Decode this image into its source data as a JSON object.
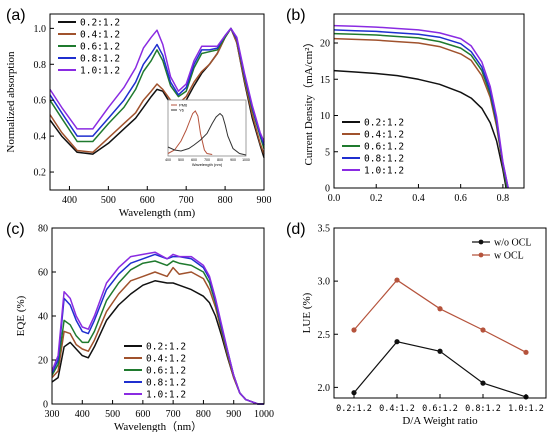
{
  "colors": {
    "r0.2": "#111111",
    "r0.4": "#a0522d",
    "r0.6": "#1f7a2e",
    "r0.8": "#1f2fcf",
    "r1.0": "#8a2be2",
    "wo": "#111111",
    "w": "#b5533c",
    "pm6": "#b5533c",
    "y6": "#333333"
  },
  "chart_data": [
    {
      "panel": "(a)",
      "type": "line",
      "xlabel": "Wavelength (nm)",
      "ylabel": "Normalized absorption",
      "xlim": [
        350,
        900
      ],
      "ylim": [
        0.1,
        1.08
      ],
      "xticks": [
        400,
        500,
        600,
        700,
        800,
        900
      ],
      "yticks": [
        0.2,
        0.4,
        0.6,
        0.8,
        1.0
      ],
      "legend_position": "top-left",
      "series": [
        {
          "name": "0.2:1.2",
          "color_key": "r0.2",
          "x": [
            350,
            380,
            420,
            460,
            500,
            540,
            570,
            590,
            610,
            625,
            640,
            660,
            680,
            700,
            720,
            740,
            760,
            780,
            800,
            815,
            830,
            850,
            870,
            890,
            900
          ],
          "y": [
            0.49,
            0.4,
            0.31,
            0.3,
            0.36,
            0.44,
            0.5,
            0.56,
            0.62,
            0.66,
            0.65,
            0.58,
            0.56,
            0.6,
            0.68,
            0.75,
            0.8,
            0.86,
            0.95,
            1.0,
            0.92,
            0.7,
            0.5,
            0.35,
            0.28
          ]
        },
        {
          "name": "0.4:1.2",
          "color_key": "r0.4",
          "x": [
            350,
            380,
            420,
            460,
            500,
            540,
            570,
            590,
            610,
            625,
            640,
            660,
            680,
            700,
            720,
            740,
            760,
            780,
            800,
            815,
            830,
            850,
            870,
            890,
            900
          ],
          "y": [
            0.52,
            0.42,
            0.32,
            0.31,
            0.39,
            0.47,
            0.53,
            0.6,
            0.65,
            0.69,
            0.66,
            0.6,
            0.58,
            0.62,
            0.7,
            0.76,
            0.8,
            0.86,
            0.95,
            1.0,
            0.92,
            0.71,
            0.52,
            0.36,
            0.3
          ]
        },
        {
          "name": "0.6:1.2",
          "color_key": "r0.6",
          "x": [
            350,
            380,
            420,
            460,
            500,
            540,
            570,
            590,
            610,
            625,
            640,
            660,
            680,
            700,
            720,
            740,
            760,
            780,
            800,
            815,
            830,
            850,
            870,
            890,
            900
          ],
          "y": [
            0.6,
            0.5,
            0.37,
            0.37,
            0.47,
            0.56,
            0.66,
            0.76,
            0.82,
            0.88,
            0.82,
            0.68,
            0.62,
            0.65,
            0.78,
            0.86,
            0.87,
            0.88,
            0.95,
            1.0,
            0.94,
            0.73,
            0.55,
            0.4,
            0.33
          ]
        },
        {
          "name": "0.8:1.2",
          "color_key": "r0.8",
          "x": [
            350,
            380,
            420,
            460,
            500,
            540,
            570,
            590,
            610,
            625,
            640,
            660,
            680,
            700,
            720,
            740,
            760,
            780,
            800,
            815,
            830,
            850,
            870,
            890,
            900
          ],
          "y": [
            0.63,
            0.53,
            0.4,
            0.4,
            0.5,
            0.6,
            0.7,
            0.8,
            0.86,
            0.91,
            0.85,
            0.7,
            0.63,
            0.67,
            0.8,
            0.88,
            0.88,
            0.89,
            0.96,
            1.0,
            0.94,
            0.74,
            0.56,
            0.41,
            0.35
          ]
        },
        {
          "name": "1.0:1.2",
          "color_key": "r1.0",
          "x": [
            350,
            380,
            420,
            460,
            500,
            540,
            570,
            590,
            610,
            625,
            640,
            660,
            680,
            700,
            720,
            740,
            760,
            780,
            800,
            815,
            830,
            850,
            870,
            890,
            900
          ],
          "y": [
            0.66,
            0.56,
            0.44,
            0.44,
            0.56,
            0.67,
            0.78,
            0.89,
            0.95,
            0.99,
            0.91,
            0.73,
            0.65,
            0.69,
            0.82,
            0.9,
            0.9,
            0.9,
            0.96,
            1.0,
            0.95,
            0.75,
            0.57,
            0.42,
            0.37
          ]
        }
      ],
      "inset": {
        "type": "line",
        "xlabel": "Wavelength (nm)",
        "legend": [
          "PM6",
          "Y6"
        ],
        "xlim": [
          400,
          1000
        ],
        "xticks": [
          400,
          500,
          600,
          700,
          800,
          900,
          1000
        ],
        "series": [
          {
            "name": "PM6",
            "color_key": "pm6",
            "x": [
              400,
              450,
              500,
              540,
              570,
              590,
              610,
              630,
              650,
              680,
              700,
              740
            ],
            "y": [
              0.05,
              0.12,
              0.3,
              0.52,
              0.72,
              0.85,
              0.9,
              0.8,
              0.45,
              0.12,
              0.05,
              0.03
            ]
          },
          {
            "name": "Y6",
            "color_key": "y6",
            "x": [
              400,
              450,
              500,
              560,
              600,
              650,
              700,
              740,
              770,
              800,
              820,
              840,
              860,
              900,
              950,
              1000
            ],
            "y": [
              0.18,
              0.12,
              0.1,
              0.15,
              0.22,
              0.32,
              0.45,
              0.65,
              0.78,
              0.85,
              0.8,
              0.62,
              0.4,
              0.15,
              0.05,
              0.02
            ]
          }
        ]
      }
    },
    {
      "panel": "(b)",
      "type": "line",
      "xlabel": "",
      "ylabel": "Current Density（mA/cm²）",
      "xlim": [
        0,
        0.9
      ],
      "ylim": [
        0,
        24
      ],
      "xticks": [
        0.0,
        0.2,
        0.4,
        0.6,
        0.8
      ],
      "yticks": [
        0,
        5,
        10,
        15,
        20
      ],
      "legend_position": "bottom-left",
      "series": [
        {
          "name": "0.2:1.2",
          "color_key": "r0.2",
          "x": [
            0,
            0.1,
            0.2,
            0.3,
            0.4,
            0.5,
            0.6,
            0.65,
            0.7,
            0.74,
            0.77,
            0.8,
            0.815
          ],
          "y": [
            16.2,
            16.0,
            15.8,
            15.5,
            15.0,
            14.3,
            13.2,
            12.4,
            11.0,
            9.0,
            6.5,
            2.5,
            0
          ]
        },
        {
          "name": "0.4:1.2",
          "color_key": "r0.4",
          "x": [
            0,
            0.1,
            0.2,
            0.3,
            0.4,
            0.5,
            0.6,
            0.65,
            0.7,
            0.74,
            0.77,
            0.8,
            0.82
          ],
          "y": [
            20.6,
            20.5,
            20.4,
            20.2,
            20.0,
            19.5,
            18.5,
            17.6,
            15.5,
            12.5,
            8.5,
            3.0,
            0
          ]
        },
        {
          "name": "0.6:1.2",
          "color_key": "r0.6",
          "x": [
            0,
            0.1,
            0.2,
            0.3,
            0.4,
            0.5,
            0.6,
            0.65,
            0.7,
            0.74,
            0.77,
            0.8,
            0.82
          ],
          "y": [
            21.3,
            21.2,
            21.1,
            20.9,
            20.7,
            20.2,
            19.3,
            18.3,
            16.2,
            13.0,
            9.0,
            3.2,
            0
          ]
        },
        {
          "name": "0.8:1.2",
          "color_key": "r0.8",
          "x": [
            0,
            0.1,
            0.2,
            0.3,
            0.4,
            0.5,
            0.6,
            0.65,
            0.7,
            0.74,
            0.77,
            0.8,
            0.825
          ],
          "y": [
            21.8,
            21.7,
            21.6,
            21.4,
            21.2,
            20.8,
            19.9,
            18.8,
            16.7,
            13.4,
            9.3,
            3.4,
            0
          ]
        },
        {
          "name": "1.0:1.2",
          "color_key": "r1.0",
          "x": [
            0,
            0.1,
            0.2,
            0.3,
            0.4,
            0.5,
            0.6,
            0.65,
            0.7,
            0.74,
            0.77,
            0.8,
            0.825
          ],
          "y": [
            22.4,
            22.3,
            22.2,
            22.0,
            21.8,
            21.4,
            20.6,
            19.6,
            17.4,
            14.0,
            9.8,
            3.6,
            0
          ]
        }
      ]
    },
    {
      "panel": "(c)",
      "type": "line",
      "xlabel": "Wavelength（nm）",
      "ylabel": "EQE  (%)",
      "xlim": [
        300,
        1000
      ],
      "ylim": [
        0,
        80
      ],
      "xticks": [
        300,
        400,
        500,
        600,
        700,
        800,
        900,
        1000
      ],
      "yticks": [
        0,
        20,
        40,
        60,
        80
      ],
      "legend_position": "bottom-left",
      "series": [
        {
          "name": "0.2:1.2",
          "color_key": "r0.2",
          "x": [
            300,
            320,
            340,
            360,
            380,
            400,
            420,
            440,
            480,
            520,
            560,
            600,
            640,
            680,
            700,
            720,
            760,
            800,
            820,
            840,
            860,
            880,
            900,
            920,
            940,
            960,
            980,
            1000
          ],
          "y": [
            10,
            12,
            26,
            28,
            25,
            22,
            21,
            26,
            38,
            45,
            50,
            54,
            56,
            55,
            55,
            54,
            52,
            49,
            46,
            40,
            31,
            21,
            12,
            5,
            2,
            1,
            0,
            0
          ]
        },
        {
          "name": "0.4:1.2",
          "color_key": "r0.4",
          "x": [
            300,
            320,
            340,
            360,
            380,
            400,
            420,
            440,
            480,
            520,
            560,
            600,
            640,
            680,
            700,
            720,
            760,
            800,
            820,
            840,
            860,
            880,
            900,
            920,
            940,
            960,
            980,
            1000
          ],
          "y": [
            12,
            15,
            33,
            32,
            27,
            25,
            24,
            29,
            42,
            50,
            56,
            58,
            60,
            58,
            62,
            59,
            60,
            57,
            52,
            44,
            33,
            22,
            12,
            5,
            2,
            1,
            0,
            0
          ]
        },
        {
          "name": "0.6:1.2",
          "color_key": "r0.6",
          "x": [
            300,
            320,
            340,
            360,
            380,
            400,
            420,
            440,
            480,
            520,
            560,
            600,
            640,
            680,
            700,
            720,
            760,
            800,
            820,
            840,
            860,
            880,
            900,
            920,
            940,
            960,
            980,
            1000
          ],
          "y": [
            13,
            18,
            38,
            36,
            31,
            28,
            28,
            33,
            47,
            55,
            61,
            64,
            65,
            63,
            65,
            64,
            63,
            60,
            55,
            46,
            34,
            23,
            13,
            5,
            2,
            1,
            0,
            0
          ]
        },
        {
          "name": "0.8:1.2",
          "color_key": "r0.8",
          "x": [
            300,
            320,
            340,
            360,
            380,
            400,
            420,
            440,
            480,
            520,
            560,
            600,
            640,
            680,
            700,
            720,
            760,
            800,
            820,
            840,
            860,
            880,
            900,
            920,
            940,
            960,
            980,
            1000
          ],
          "y": [
            14,
            20,
            48,
            45,
            38,
            33,
            32,
            38,
            52,
            59,
            64,
            66,
            68,
            66,
            67,
            67,
            66,
            62,
            57,
            47,
            35,
            24,
            13,
            5,
            2,
            1,
            0,
            0
          ]
        },
        {
          "name": "1.0:1.2",
          "color_key": "r1.0",
          "x": [
            300,
            320,
            340,
            360,
            380,
            400,
            420,
            440,
            480,
            520,
            560,
            600,
            640,
            680,
            700,
            720,
            760,
            800,
            820,
            840,
            860,
            880,
            900,
            920,
            940,
            960,
            980,
            1000
          ],
          "y": [
            15,
            22,
            51,
            48,
            40,
            35,
            34,
            40,
            55,
            62,
            67,
            68,
            69,
            66,
            68,
            67,
            67,
            63,
            58,
            48,
            36,
            24,
            13,
            5,
            2,
            1,
            0,
            0
          ]
        }
      ]
    },
    {
      "panel": "(d)",
      "type": "line",
      "xlabel": "D/A Weight ratio",
      "ylabel": "LUE  (%)",
      "categories": [
        "0.2:1.2",
        "0.4:1.2",
        "0.6:1.2",
        "0.8:1.2",
        "1.0:1.2"
      ],
      "ylim": [
        1.9,
        3.5
      ],
      "yticks": [
        2.0,
        2.5,
        3.0,
        3.5
      ],
      "legend_position": "top-right",
      "series": [
        {
          "name": "w/o OCL",
          "color_key": "wo",
          "values": [
            1.95,
            2.43,
            2.34,
            2.04,
            1.91
          ]
        },
        {
          "name": "w OCL",
          "color_key": "w",
          "values": [
            2.54,
            3.01,
            2.74,
            2.54,
            2.33
          ]
        }
      ]
    }
  ]
}
